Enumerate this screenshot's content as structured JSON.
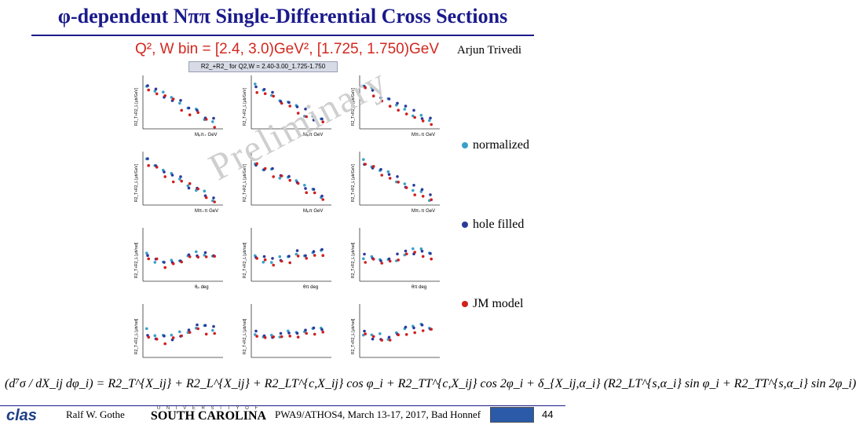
{
  "slide": {
    "title": "φ-dependent Nππ Single-Differential Cross Sections",
    "subtitle": "Q², W bin = [2.4, 3.0)GeV², [1.725, 1.750)GeV",
    "author": "Arjun Trivedi",
    "plot_header": "R2_+R2_ for Q2,W = 2.40-3.00_1.725-1.750",
    "watermark": "Preliminary"
  },
  "legend": [
    {
      "label": "normalized",
      "color": "#3aa0c8"
    },
    {
      "label": "hole filled",
      "color": "#2a3a9a"
    },
    {
      "label": "JM model",
      "color": "#d21e1e"
    }
  ],
  "panels": {
    "rows": [
      {
        "ylabel": "R2_T+R2_L [μb/GeV]",
        "xlabels": [
          "Mₚπ₊ GeV",
          "Mₚπ GeV",
          "Mπ₊π GeV"
        ]
      },
      {
        "ylabel": "R2_T+R2_L [μb/GeV]",
        "xlabels": [
          "Mπ₊π GeV",
          "Mₚπ GeV",
          "Mπ₊π GeV"
        ]
      },
      {
        "ylabel": "R2_T+R2_L [μb/rad]",
        "xlabels": [
          "θₚ deg",
          "θπ deg",
          "θπ deg"
        ]
      },
      {
        "ylabel": "R2_T+R2_L [μb/rad]",
        "xlabels": [
          "",
          "",
          ""
        ]
      }
    ]
  },
  "formula": "(d⁷σ / dX_ij dφ_i) = R2_T^{X_ij} + R2_L^{X_ij} + R2_LT^{c,X_ij} cos φ_i + R2_TT^{c,X_ij} cos 2φ_i + δ_{X_ij,α_i} (R2_LT^{s,α_i} sin φ_i + R2_TT^{s,α_i} sin 2φ_i)",
  "footer": {
    "logo": "clas",
    "presenter": "Ralf W. Gothe",
    "university_top": "U N I V E R S I T Y  O F",
    "university_main": "SOUTH CAROLINA",
    "conference": "PWA9/ATHOS4, March 13-17, 2017, Bad Honnef",
    "page_number": "44"
  }
}
